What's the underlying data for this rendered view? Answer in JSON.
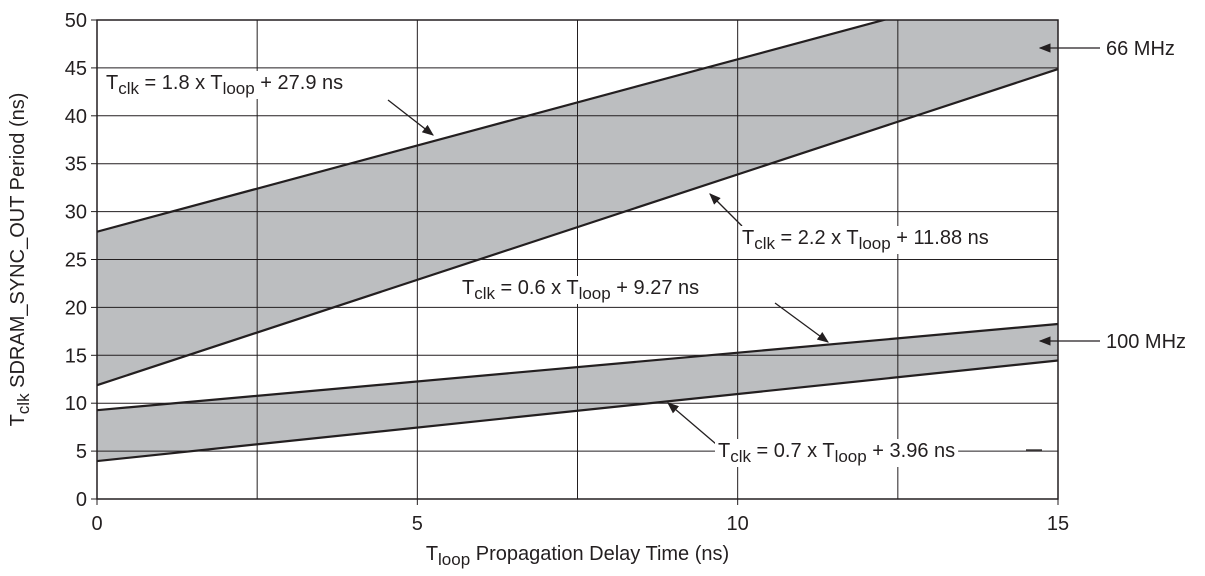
{
  "chart_data": {
    "type": "line",
    "x_label": [
      "T",
      "loop",
      " Propagation Delay Time (ns)"
    ],
    "y_label": [
      "T",
      "clk",
      " SDRAM_SYNC_OUT Period (ns)"
    ],
    "xlim": [
      0,
      15
    ],
    "ylim": [
      0,
      50
    ],
    "xticks": [
      0,
      5,
      10,
      15
    ],
    "x_minor_grid": [
      2.5,
      7.5,
      12.5
    ],
    "yticks": [
      0,
      5,
      10,
      15,
      20,
      25,
      30,
      35,
      40,
      45,
      50
    ],
    "grid": true,
    "band_fill": "#bcbec0",
    "series": [
      {
        "color": "#231f20",
        "x": [
          0,
          15
        ],
        "values": [
          27.9,
          54.9
        ]
      },
      {
        "color": "#231f20",
        "x": [
          0,
          15
        ],
        "values": [
          11.88,
          44.88
        ]
      },
      {
        "color": "#231f20",
        "x": [
          0,
          15
        ],
        "values": [
          9.27,
          18.27
        ]
      },
      {
        "color": "#231f20",
        "x": [
          0,
          15
        ],
        "values": [
          3.96,
          14.46
        ]
      }
    ],
    "annotations": [
      [
        "T",
        "clk",
        " = 1.8 x T",
        "loop",
        " + 27.9 ns"
      ],
      [
        "T",
        "clk",
        " = 2.2 x T",
        "loop",
        " + 11.88 ns"
      ],
      [
        "T",
        "clk",
        " = 0.6 x T",
        "loop",
        " + 9.27 ns"
      ],
      [
        "T",
        "clk",
        " = 0.7 x T",
        "loop",
        " + 3.96 ns"
      ],
      [
        "66 MHz"
      ],
      [
        "100 MHz"
      ]
    ]
  }
}
